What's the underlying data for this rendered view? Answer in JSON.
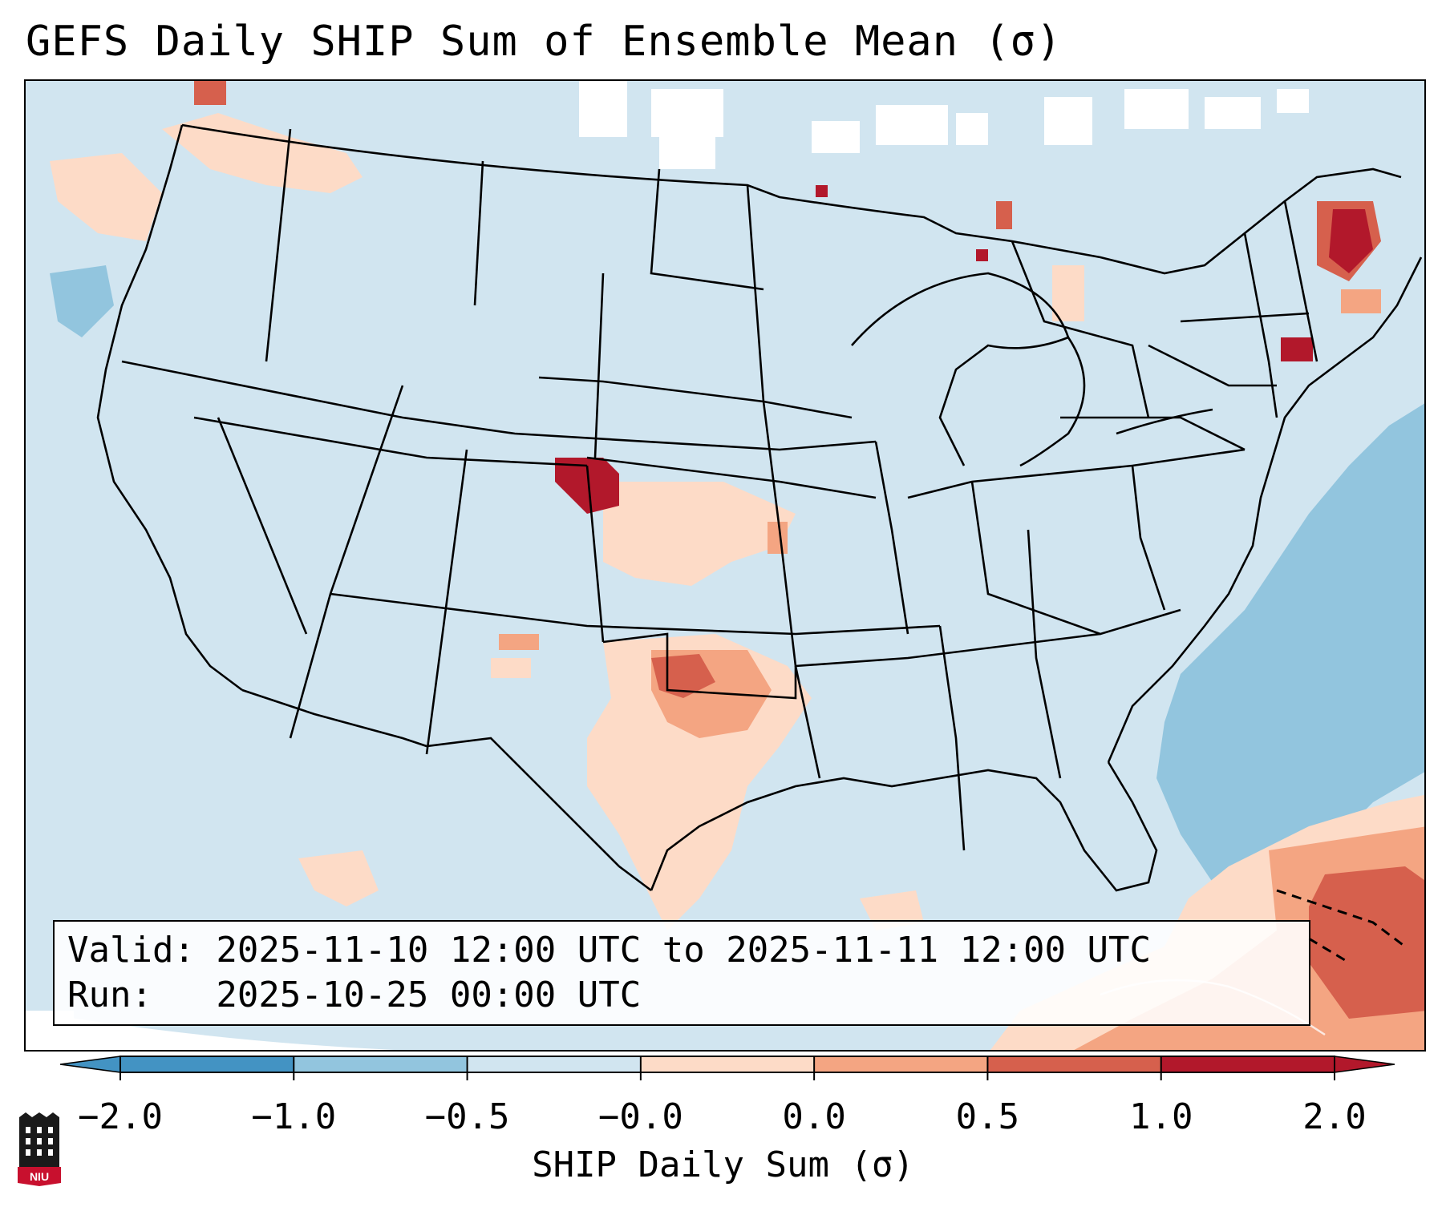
{
  "title": "GEFS Daily SHIP Sum of Ensemble Mean (σ)",
  "info": {
    "valid_line": "Valid: 2025-11-10 12:00 UTC to 2025-11-11 12:00 UTC",
    "run_line": "Run:   2025-10-25 00:00 UTC"
  },
  "colorbar": {
    "label": "SHIP Daily Sum (σ)",
    "ticks": [
      "−2.0",
      "−1.0",
      "−0.5",
      "−0.0",
      "0.0",
      "0.5",
      "1.0",
      "2.0"
    ],
    "colors": [
      "#4393c3",
      "#92c5de",
      "#d1e5f0",
      "#f7f7f7",
      "#fddbc7",
      "#f4a582",
      "#d6604d",
      "#b2182b"
    ],
    "extend": "both"
  },
  "logo": {
    "text": "NIU",
    "icon": "niu-building-logo-icon"
  },
  "map": {
    "projection": "lambert-conformal",
    "region": "CONUS",
    "background_color": "#d1e5f0",
    "highlights": [
      {
        "area": "northeast Colorado / southwest Nebraska",
        "category": "1.0 to 2.0"
      },
      {
        "area": "north Texas / south Oklahoma",
        "category": "0.5 to 1.0"
      },
      {
        "area": "central Texas",
        "category": "0.0 to 0.5"
      },
      {
        "area": "Maine",
        "category": "1.0 to 2.0"
      },
      {
        "area": "Massachusetts",
        "category": "1.0 to 2.0"
      },
      {
        "area": "Upper Michigan",
        "category": "1.0 to 2.0"
      },
      {
        "area": "northern Caribbean",
        "category": "0.5 to 1.0"
      },
      {
        "area": "western Atlantic offshore",
        "category": "-1.0 to -0.5"
      }
    ]
  }
}
